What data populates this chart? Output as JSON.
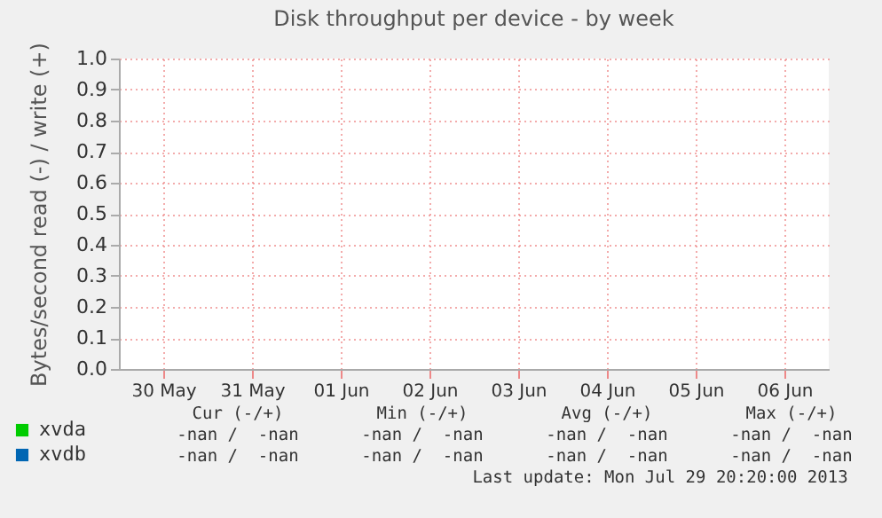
{
  "chart_data": {
    "type": "line",
    "title": "Disk throughput per device - by week",
    "ylabel": "Bytes/second read (-) / write (+)",
    "categories": [
      "30 May",
      "31 May",
      "01 Jun",
      "02 Jun",
      "03 Jun",
      "04 Jun",
      "05 Jun",
      "06 Jun"
    ],
    "ylim": [
      0,
      1
    ],
    "yticks": [
      {
        "value": 0,
        "label": "0.0"
      },
      {
        "value": 0.1,
        "label": "0.1"
      },
      {
        "value": 0.2,
        "label": "0.2"
      },
      {
        "value": 0.3,
        "label": "0.3"
      },
      {
        "value": 0.4,
        "label": "0.4"
      },
      {
        "value": 0.5,
        "label": "0.5"
      },
      {
        "value": 0.6,
        "label": "0.6"
      },
      {
        "value": 0.7,
        "label": "0.7"
      },
      {
        "value": 0.8,
        "label": "0.8"
      },
      {
        "value": 0.9,
        "label": "0.9"
      },
      {
        "value": 1,
        "label": "1.0"
      }
    ],
    "grid": true,
    "legend": "bottom left",
    "series": [
      {
        "name": "xvda",
        "color": "#00cc00",
        "values": [
          null,
          null,
          null,
          null,
          null,
          null,
          null,
          null
        ]
      },
      {
        "name": "xvdb",
        "color": "#0066b3",
        "values": [
          null,
          null,
          null,
          null,
          null,
          null,
          null,
          null
        ]
      }
    ],
    "annotations": [
      "Cur (-/+)",
      "Min (-/+)",
      "Avg (-/+)",
      "Max (-/+)",
      "-nan /  -nan",
      "-nan /  -nan",
      "-nan /  -nan",
      "-nan /  -nan",
      "-nan /  -nan",
      "-nan /  -nan",
      "-nan /  -nan",
      "-nan /  -nan",
      "Last update: Mon Jul 29 20:20:00 2013"
    ]
  }
}
